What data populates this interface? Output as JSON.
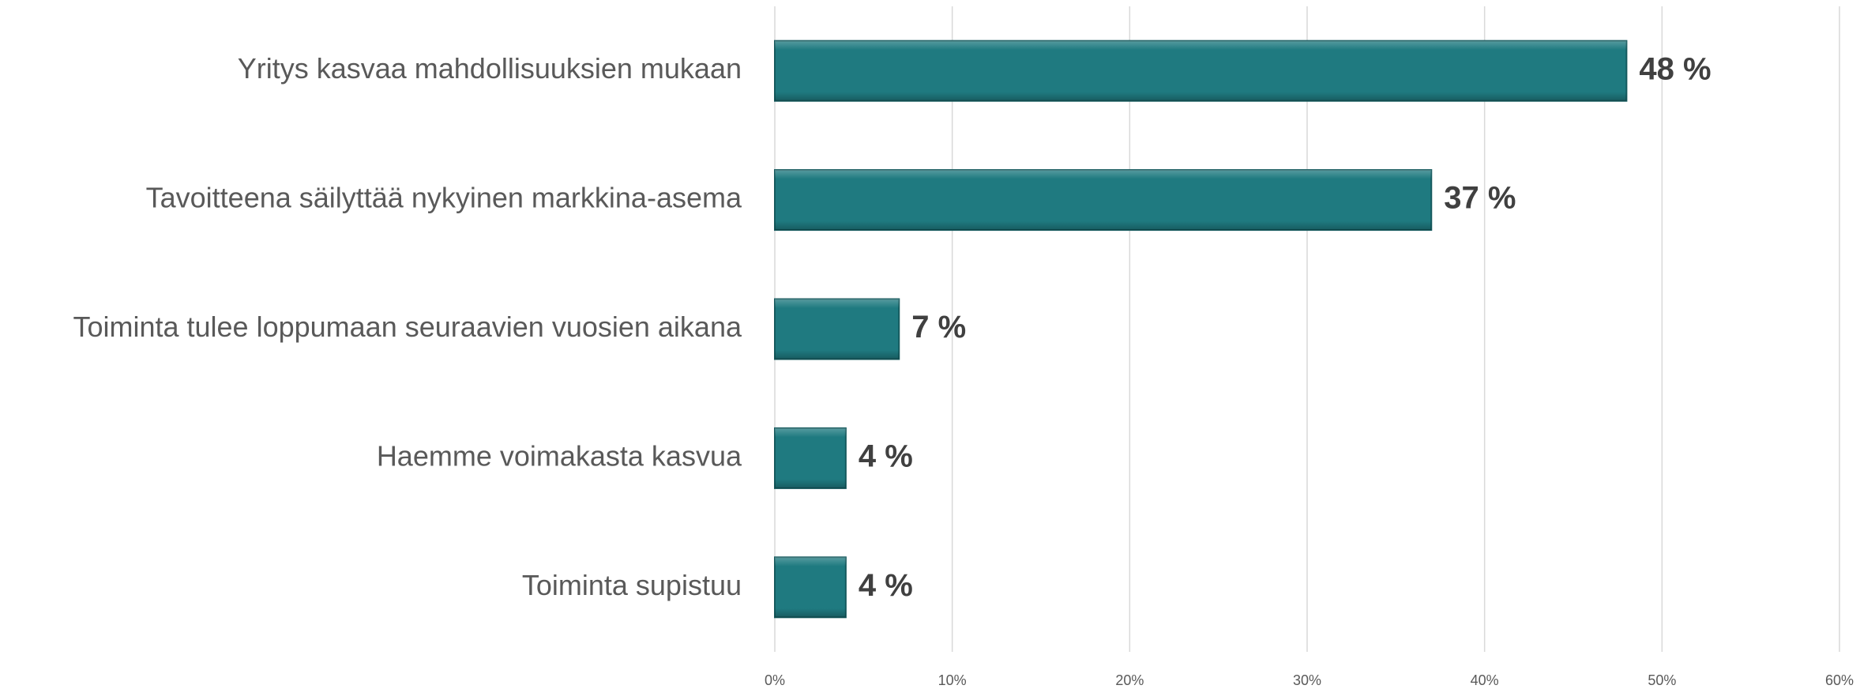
{
  "chart_data": {
    "type": "bar",
    "orientation": "horizontal",
    "categories": [
      "Yritys kasvaa mahdollisuuksien mukaan",
      "Tavoitteena säilyttää nykyinen markkina-asema",
      "Toiminta tulee loppumaan seuraavien vuosien aikana",
      "Haemme voimakasta kasvua",
      "Toiminta supistuu"
    ],
    "values": [
      48,
      37,
      7,
      4,
      4
    ],
    "value_labels": [
      "48 %",
      "37 %",
      "7 %",
      "4 %",
      "4 %"
    ],
    "color": "#1f7a80",
    "xlim": [
      0,
      60
    ],
    "xticks": [
      {
        "value": 0,
        "label": "0%"
      },
      {
        "value": 10,
        "label": "10%"
      },
      {
        "value": 20,
        "label": "20%"
      },
      {
        "value": 30,
        "label": "30%"
      },
      {
        "value": 40,
        "label": "40%"
      },
      {
        "value": 50,
        "label": "50%"
      },
      {
        "value": 60,
        "label": "60%"
      }
    ],
    "grid": true
  }
}
